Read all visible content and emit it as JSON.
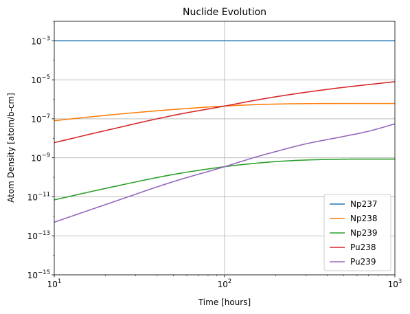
{
  "chart_data": {
    "type": "line",
    "title": "Nuclide Evolution",
    "xlabel": "Time [hours]",
    "ylabel": "Atom Density [atom/b-cm]",
    "xscale": "log",
    "yscale": "log",
    "xlim": [
      10,
      1000
    ],
    "ylim": [
      1e-15,
      0.01
    ],
    "x_ticks": [
      {
        "value": 10,
        "base": "10",
        "exp": "1"
      },
      {
        "value": 100,
        "base": "10",
        "exp": "2"
      },
      {
        "value": 1000,
        "base": "10",
        "exp": "3"
      }
    ],
    "y_ticks": [
      {
        "value": 1e-15,
        "base": "10",
        "exp": "−15"
      },
      {
        "value": 1e-13,
        "base": "10",
        "exp": "−13"
      },
      {
        "value": 1e-11,
        "base": "10",
        "exp": "−11"
      },
      {
        "value": 1e-09,
        "base": "10",
        "exp": "−9"
      },
      {
        "value": 1e-07,
        "base": "10",
        "exp": "−7"
      },
      {
        "value": 1e-05,
        "base": "10",
        "exp": "−5"
      },
      {
        "value": 0.001,
        "base": "10",
        "exp": "−3"
      }
    ],
    "grid": "major",
    "legend": "lower-right",
    "x": [
      10,
      20,
      50,
      100,
      150,
      200,
      300,
      500,
      700,
      1000
    ],
    "series": [
      {
        "name": "Np237",
        "color": "#1f77b4",
        "values": [
          0.001,
          0.001,
          0.001,
          0.001,
          0.001,
          0.001,
          0.001,
          0.001,
          0.001,
          0.001
        ]
      },
      {
        "name": "Np238",
        "color": "#ff7f0e",
        "values": [
          8e-08,
          1.5e-07,
          3e-07,
          4.5e-07,
          5.3e-07,
          5.7e-07,
          6e-07,
          6.1e-07,
          6.1e-07,
          6.1e-07
        ]
      },
      {
        "name": "Np239",
        "color": "#2ca02c",
        "values": [
          7e-12,
          2.7e-11,
          1.4e-10,
          3.5e-10,
          5.2e-10,
          6.4e-10,
          7.7e-10,
          8.5e-10,
          8.6e-10,
          8.6e-10
        ]
      },
      {
        "name": "Pu238",
        "color": "#d62728",
        "values": [
          6e-09,
          2.5e-08,
          1.5e-07,
          4.5e-07,
          8.8e-07,
          1.35e-06,
          2.3e-06,
          4.1e-06,
          5.7e-06,
          8e-06
        ]
      },
      {
        "name": "Pu239",
        "color": "#9467bd",
        "values": [
          5e-13,
          4e-12,
          6e-11,
          3.5e-10,
          1.05e-09,
          2.1e-09,
          5.2e-09,
          1.25e-08,
          2.3e-08,
          5.5e-08
        ]
      }
    ]
  }
}
